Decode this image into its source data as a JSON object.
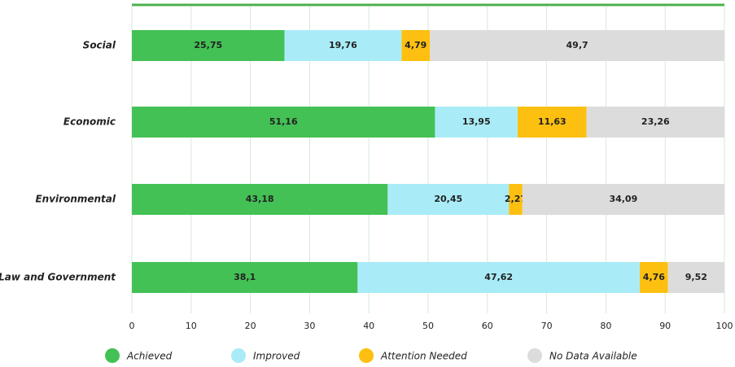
{
  "chart_data": {
    "type": "stacked-bar-horizontal",
    "categories": [
      "Social",
      "Economic",
      "Environmental",
      "Law and Government"
    ],
    "series": [
      {
        "name": "Achieved",
        "color": "#43c155",
        "values": [
          25.75,
          51.16,
          43.18,
          38.1
        ],
        "value_labels": [
          "25,75",
          "51,16",
          "43,18",
          "38,1"
        ]
      },
      {
        "name": "Improved",
        "color": "#a9ecf7",
        "values": [
          19.76,
          13.95,
          20.45,
          47.62
        ],
        "value_labels": [
          "19,76",
          "13,95",
          "20,45",
          "47,62"
        ]
      },
      {
        "name": "Attention Needed",
        "color": "#fdc010",
        "values": [
          4.79,
          11.63,
          2.27,
          4.76
        ],
        "value_labels": [
          "4,79",
          "11,63",
          "2,27",
          "4,76"
        ]
      },
      {
        "name": "No Data Available",
        "color": "#dcdcdc",
        "values": [
          49.7,
          23.26,
          34.09,
          9.52
        ],
        "value_labels": [
          "49,7",
          "23,26",
          "34,09",
          "9,52"
        ]
      }
    ],
    "xlim": [
      0,
      100
    ],
    "xticks": [
      0,
      10,
      20,
      30,
      40,
      50,
      60,
      70,
      80,
      90,
      100
    ],
    "grid": true,
    "legend": "bottom"
  }
}
